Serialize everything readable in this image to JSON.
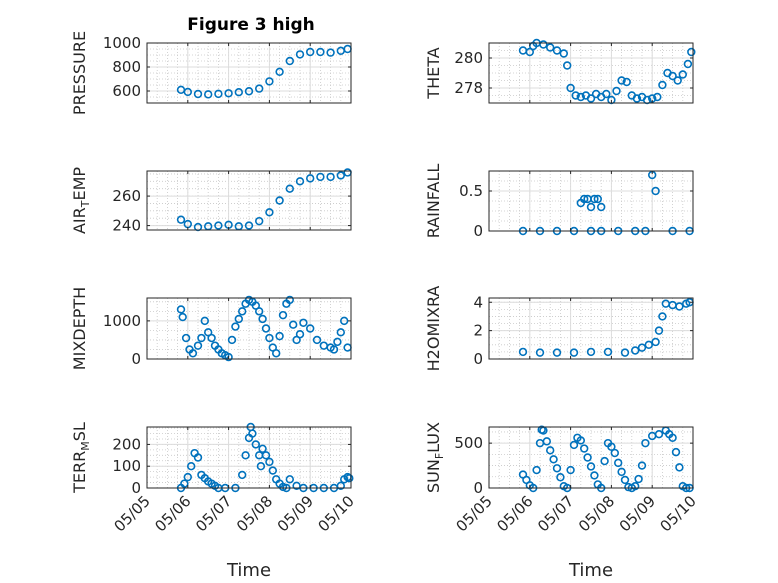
{
  "figure_title": "Figure 3 high",
  "colors": {
    "marker": "#0072BD",
    "axis": "#262626",
    "grid": "#c8c8c8"
  },
  "chart_data": [
    {
      "type": "scatter",
      "title": "Figure 3 high",
      "xlabel": "",
      "ylabel": "PRESSURE",
      "xlim": [
        "05/05",
        "05/10"
      ],
      "ylim": [
        500,
        1000
      ],
      "yticks": [
        600,
        800,
        1000
      ],
      "grid": true,
      "x": [
        "05/05 20:00",
        "05/06 00:00",
        "05/06 06:00",
        "05/06 12:00",
        "05/06 18:00",
        "05/07 00:00",
        "05/07 06:00",
        "05/07 12:00",
        "05/07 18:00",
        "05/08 00:00",
        "05/08 06:00",
        "05/08 12:00",
        "05/08 18:00",
        "05/09 00:00",
        "05/09 06:00",
        "05/09 12:00",
        "05/09 18:00",
        "05/09 22:00"
      ],
      "y": [
        610,
        592,
        575,
        572,
        576,
        581,
        590,
        598,
        620,
        680,
        760,
        850,
        905,
        925,
        925,
        920,
        935,
        950
      ]
    },
    {
      "type": "scatter",
      "title": "",
      "xlabel": "",
      "ylabel": "THETA",
      "xlim": [
        "05/05",
        "05/10"
      ],
      "ylim": [
        277,
        281
      ],
      "yticks": [
        278,
        280
      ],
      "grid": true,
      "x": [
        "05/05 20:00",
        "05/06 00:00",
        "05/06 02:00",
        "05/06 04:00",
        "05/06 08:00",
        "05/06 12:00",
        "05/06 16:00",
        "05/06 20:00",
        "05/06 22:00",
        "05/07 00:00",
        "05/07 03:00",
        "05/07 06:00",
        "05/07 09:00",
        "05/07 12:00",
        "05/07 15:00",
        "05/07 18:00",
        "05/07 21:00",
        "05/08 00:00",
        "05/08 03:00",
        "05/08 06:00",
        "05/08 09:00",
        "05/08 12:00",
        "05/08 15:00",
        "05/08 18:00",
        "05/08 21:00",
        "05/09 00:00",
        "05/09 03:00",
        "05/09 06:00",
        "05/09 09:00",
        "05/09 12:00",
        "05/09 15:00",
        "05/09 18:00",
        "05/09 21:00",
        "05/09 23:00"
      ],
      "y": [
        280.5,
        280.4,
        280.8,
        281.0,
        280.9,
        280.7,
        280.5,
        280.3,
        279.5,
        278.0,
        277.5,
        277.4,
        277.5,
        277.3,
        277.6,
        277.4,
        277.6,
        277.2,
        277.8,
        278.5,
        278.4,
        277.5,
        277.3,
        277.4,
        277.2,
        277.3,
        277.4,
        278.2,
        279.0,
        278.8,
        278.5,
        278.9,
        279.6,
        280.4
      ]
    },
    {
      "type": "scatter",
      "title": "",
      "xlabel": "",
      "ylabel": "AIR_TEMP",
      "xlim": [
        "05/05",
        "05/10"
      ],
      "ylim": [
        237,
        277
      ],
      "yticks": [
        240,
        260
      ],
      "grid": true,
      "x": [
        "05/05 20:00",
        "05/06 00:00",
        "05/06 06:00",
        "05/06 12:00",
        "05/06 18:00",
        "05/07 00:00",
        "05/07 06:00",
        "05/07 12:00",
        "05/07 18:00",
        "05/08 00:00",
        "05/08 06:00",
        "05/08 12:00",
        "05/08 18:00",
        "05/09 00:00",
        "05/09 06:00",
        "05/09 12:00",
        "05/09 18:00",
        "05/09 22:00"
      ],
      "y": [
        244,
        241,
        239,
        239.5,
        240,
        240.5,
        239.5,
        240,
        243,
        249,
        257,
        265,
        270,
        272,
        273,
        273,
        274,
        276
      ]
    },
    {
      "type": "scatter",
      "title": "",
      "xlabel": "",
      "ylabel": "RAINFALL",
      "xlim": [
        "05/05",
        "05/10"
      ],
      "ylim": [
        0,
        0.75
      ],
      "yticks": [
        0,
        0.5
      ],
      "grid": true,
      "x": [
        "05/05 20:00",
        "05/06 06:00",
        "05/06 16:00",
        "05/07 02:00",
        "05/07 06:00",
        "05/07 08:00",
        "05/07 10:00",
        "05/07 12:00",
        "05/07 14:00",
        "05/07 16:00",
        "05/07 12:00",
        "05/07 18:00",
        "05/07 18:00",
        "05/08 04:00",
        "05/08 14:00",
        "05/08 20:00",
        "05/09 00:00",
        "05/09 02:00",
        "05/09 12:00",
        "05/09 22:00"
      ],
      "y": [
        0,
        0,
        0,
        0,
        0.35,
        0.4,
        0.4,
        0.3,
        0.4,
        0.4,
        0,
        0.3,
        0,
        0,
        0,
        0,
        0.7,
        0.5,
        0,
        0
      ]
    },
    {
      "type": "scatter",
      "title": "",
      "xlabel": "",
      "ylabel": "MIXDEPTH",
      "xlim": [
        "05/05",
        "05/10"
      ],
      "ylim": [
        0,
        1600
      ],
      "yticks": [
        0,
        1000
      ],
      "grid": true,
      "x": [
        "05/05 20:00",
        "05/05 21:00",
        "05/05 23:00",
        "05/06 01:00",
        "05/06 03:00",
        "05/06 06:00",
        "05/06 08:00",
        "05/06 10:00",
        "05/06 12:00",
        "05/06 14:00",
        "05/06 16:00",
        "05/06 18:00",
        "05/06 20:00",
        "05/06 22:00",
        "05/07 00:00",
        "05/07 02:00",
        "05/07 04:00",
        "05/07 06:00",
        "05/07 08:00",
        "05/07 10:00",
        "05/07 12:00",
        "05/07 14:00",
        "05/07 16:00",
        "05/07 18:00",
        "05/07 20:00",
        "05/07 22:00",
        "05/08 00:00",
        "05/08 02:00",
        "05/08 04:00",
        "05/08 06:00",
        "05/08 08:00",
        "05/08 10:00",
        "05/08 12:00",
        "05/08 14:00",
        "05/08 16:00",
        "05/08 18:00",
        "05/08 20:00",
        "05/09 00:00",
        "05/09 04:00",
        "05/09 08:00",
        "05/09 12:00",
        "05/09 14:00",
        "05/09 16:00",
        "05/09 18:00",
        "05/09 20:00",
        "05/09 22:00"
      ],
      "y": [
        1300,
        1100,
        550,
        250,
        150,
        350,
        550,
        1000,
        700,
        550,
        350,
        250,
        150,
        100,
        50,
        500,
        850,
        1050,
        1250,
        1450,
        1550,
        1500,
        1400,
        1250,
        1050,
        800,
        550,
        300,
        150,
        600,
        1150,
        1450,
        1550,
        900,
        500,
        650,
        950,
        800,
        500,
        350,
        300,
        250,
        450,
        700,
        1000,
        300
      ]
    },
    {
      "type": "scatter",
      "title": "",
      "xlabel": "",
      "ylabel": "H2OMIXRA",
      "xlim": [
        "05/05",
        "05/10"
      ],
      "ylim": [
        0,
        4.3
      ],
      "yticks": [
        0,
        2,
        4
      ],
      "grid": true,
      "x": [
        "05/05 20:00",
        "05/06 06:00",
        "05/06 16:00",
        "05/07 02:00",
        "05/07 12:00",
        "05/07 22:00",
        "05/08 08:00",
        "05/08 14:00",
        "05/08 18:00",
        "05/08 22:00",
        "05/09 02:00",
        "05/09 04:00",
        "05/09 06:00",
        "05/09 08:00",
        "05/09 12:00",
        "05/09 16:00",
        "05/09 20:00",
        "05/09 22:00"
      ],
      "y": [
        0.5,
        0.45,
        0.45,
        0.45,
        0.5,
        0.5,
        0.45,
        0.6,
        0.8,
        1.0,
        1.2,
        2.0,
        3.0,
        3.9,
        3.8,
        3.7,
        3.9,
        4.0
      ]
    },
    {
      "type": "scatter",
      "title": "",
      "xlabel": "",
      "ylabel": "TERR_MSL",
      "xlim": [
        "05/05",
        "05/10"
      ],
      "ylim": [
        0,
        280
      ],
      "yticks": [
        0,
        100,
        200
      ],
      "grid": true,
      "x": [
        "05/05 20:00",
        "05/05 22:00",
        "05/06 00:00",
        "05/06 02:00",
        "05/06 04:00",
        "05/06 06:00",
        "05/06 08:00",
        "05/06 10:00",
        "05/06 12:00",
        "05/06 14:00",
        "05/06 16:00",
        "05/06 18:00",
        "05/06 22:00",
        "05/07 04:00",
        "05/07 08:00",
        "05/07 10:00",
        "05/07 12:00",
        "05/07 13:00",
        "05/07 14:00",
        "05/07 16:00",
        "05/07 18:00",
        "05/07 19:00",
        "05/07 20:00",
        "05/07 22:00",
        "05/08 00:00",
        "05/08 02:00",
        "05/08 04:00",
        "05/08 06:00",
        "05/08 08:00",
        "05/08 10:00",
        "05/08 12:00",
        "05/08 16:00",
        "05/08 20:00",
        "05/09 02:00",
        "05/09 08:00",
        "05/09 14:00",
        "05/09 18:00",
        "05/09 20:00",
        "05/09 22:00",
        "05/09 23:00"
      ],
      "y": [
        0,
        20,
        50,
        100,
        160,
        140,
        60,
        45,
        30,
        20,
        10,
        0,
        0,
        0,
        60,
        150,
        230,
        280,
        250,
        200,
        150,
        100,
        180,
        150,
        120,
        80,
        40,
        20,
        5,
        0,
        40,
        10,
        0,
        0,
        0,
        0,
        10,
        40,
        50,
        45
      ]
    },
    {
      "type": "scatter",
      "title": "",
      "xlabel": "",
      "ylabel": "SUN_FLUX",
      "xlim": [
        "05/05",
        "05/10"
      ],
      "ylim": [
        0,
        680
      ],
      "yticks": [
        0,
        500
      ],
      "grid": true,
      "x": [
        "05/05 20:00",
        "05/05 22:00",
        "05/06 00:00",
        "05/06 02:00",
        "05/06 04:00",
        "05/06 06:00",
        "05/06 07:00",
        "05/06 08:00",
        "05/06 10:00",
        "05/06 12:00",
        "05/06 14:00",
        "05/06 16:00",
        "05/06 18:00",
        "05/06 20:00",
        "05/06 22:00",
        "05/07 00:00",
        "05/07 02:00",
        "05/07 04:00",
        "05/07 06:00",
        "05/07 08:00",
        "05/07 10:00",
        "05/07 12:00",
        "05/07 14:00",
        "05/07 16:00",
        "05/07 18:00",
        "05/07 20:00",
        "05/07 22:00",
        "05/08 00:00",
        "05/08 02:00",
        "05/08 04:00",
        "05/08 06:00",
        "05/08 08:00",
        "05/08 10:00",
        "05/08 12:00",
        "05/08 14:00",
        "05/08 16:00",
        "05/08 18:00",
        "05/08 20:00",
        "05/09 00:00",
        "05/09 04:00",
        "05/09 08:00",
        "05/09 10:00",
        "05/09 12:00",
        "05/09 14:00",
        "05/09 16:00",
        "05/09 18:00",
        "05/09 20:00",
        "05/09 22:00"
      ],
      "y": [
        150,
        90,
        30,
        0,
        200,
        500,
        650,
        640,
        520,
        420,
        320,
        220,
        120,
        20,
        0,
        200,
        480,
        560,
        530,
        440,
        340,
        240,
        140,
        40,
        0,
        300,
        500,
        460,
        390,
        280,
        180,
        90,
        10,
        0,
        20,
        100,
        250,
        500,
        580,
        600,
        640,
        600,
        560,
        400,
        230,
        20,
        0,
        0
      ]
    }
  ],
  "x_tick_labels": [
    "05/05",
    "05/06",
    "05/07",
    "05/08",
    "05/09",
    "05/10"
  ],
  "x_axis_label": "Time"
}
